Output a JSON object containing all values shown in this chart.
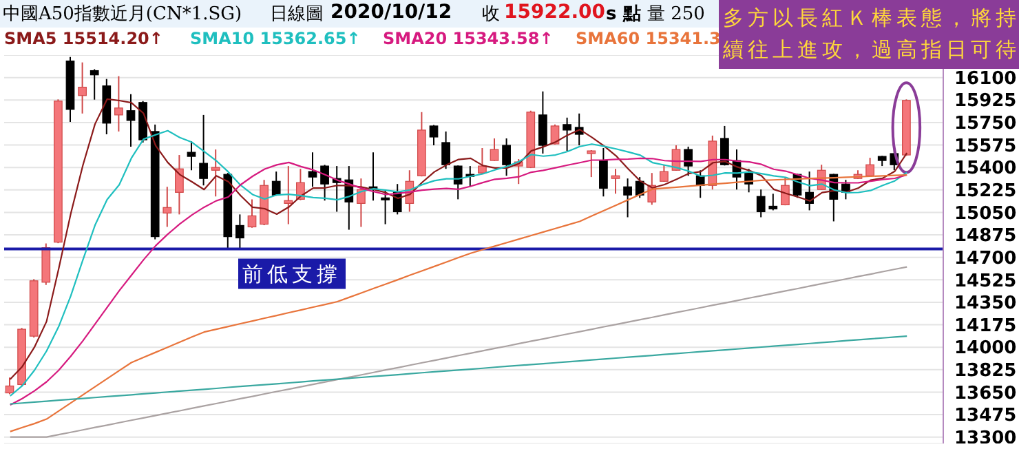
{
  "chart_data": {
    "type": "candlestick",
    "title": "中國A50指數近月(CN*1.SG)",
    "annotations": [
      "日線圖",
      "2020/10/12",
      "收",
      "15922.00",
      "s 點",
      "量 250",
      "多方以長紅Ｋ棒表態，將持續往上進攻，過高指日可待"
    ],
    "categories": [
      null,
      null,
      null,
      null,
      null,
      null,
      null,
      null,
      null,
      null,
      null,
      null,
      null,
      null,
      null,
      null,
      null,
      null,
      null,
      null,
      null,
      null,
      null,
      null,
      null,
      null,
      null,
      null,
      null,
      null,
      null,
      null,
      null,
      null,
      null,
      null,
      null,
      null,
      null,
      null,
      null,
      null,
      null,
      null,
      null,
      null,
      null,
      null,
      null,
      null,
      null,
      null,
      null,
      null,
      null,
      null,
      null,
      null,
      null,
      null,
      null,
      null,
      null,
      null,
      null,
      null,
      null,
      null,
      null,
      null,
      null,
      null,
      null,
      null,
      null
    ],
    "ohlc": [
      [
        13644,
        13763,
        13634,
        13698
      ],
      [
        13709,
        14150,
        13700,
        14140
      ],
      [
        14086,
        14530,
        14075,
        14517
      ],
      [
        14506,
        14808,
        14485,
        14775
      ],
      [
        14818,
        15930,
        14810,
        15917
      ],
      [
        16229,
        16260,
        15755,
        15852
      ],
      [
        15960,
        16218,
        15820,
        16025
      ],
      [
        16154,
        16165,
        15928,
        16121
      ],
      [
        16035,
        16089,
        15658,
        15745
      ],
      [
        15809,
        16111,
        15680,
        15863
      ],
      [
        15842,
        15971,
        15562,
        15766
      ],
      [
        15906,
        15917,
        15594,
        15615
      ],
      [
        15680,
        15734,
        14840,
        14861
      ],
      [
        15045,
        15249,
        14937,
        15088
      ],
      [
        15206,
        15497,
        15034,
        15389
      ],
      [
        15518,
        15605,
        15378,
        15486
      ],
      [
        15432,
        15809,
        15260,
        15314
      ],
      [
        15378,
        15540,
        15174,
        15400
      ],
      [
        15346,
        15357,
        14765,
        14861
      ],
      [
        14948,
        15034,
        14765,
        14851
      ],
      [
        14937,
        15152,
        14930,
        15023
      ],
      [
        14958,
        15303,
        14950,
        15260
      ],
      [
        15292,
        15368,
        15180,
        15185
      ],
      [
        15120,
        15411,
        14958,
        15142
      ],
      [
        15152,
        15389,
        15145,
        15282
      ],
      [
        15368,
        15518,
        15249,
        15325
      ],
      [
        15411,
        15420,
        15142,
        15271
      ],
      [
        15314,
        15411,
        15055,
        15282
      ],
      [
        15303,
        15411,
        14915,
        15131
      ],
      [
        15120,
        15314,
        14937,
        15228
      ],
      [
        15249,
        15518,
        15142,
        15228
      ],
      [
        15163,
        15228,
        14958,
        15152
      ],
      [
        15206,
        15271,
        15034,
        15055
      ],
      [
        15120,
        15378,
        15055,
        15292
      ],
      [
        15335,
        15831,
        15330,
        15691
      ],
      [
        15723,
        15730,
        15572,
        15637
      ],
      [
        15594,
        15680,
        15389,
        15421
      ],
      [
        15411,
        15415,
        15152,
        15271
      ],
      [
        15346,
        15411,
        15249,
        15335
      ],
      [
        15357,
        15551,
        15350,
        15411
      ],
      [
        15454,
        15626,
        15450,
        15540
      ],
      [
        15572,
        15626,
        15335,
        15421
      ],
      [
        15411,
        15465,
        15271,
        15443
      ],
      [
        15400,
        15842,
        15395,
        15831
      ],
      [
        15809,
        15992,
        15508,
        15572
      ],
      [
        15583,
        15734,
        15578,
        15723
      ],
      [
        15734,
        15788,
        15529,
        15691
      ],
      [
        15712,
        15820,
        15572,
        15658
      ],
      [
        15508,
        15535,
        15325,
        15529
      ],
      [
        15454,
        15551,
        15174,
        15238
      ],
      [
        15314,
        15389,
        15195,
        15335
      ],
      [
        15249,
        15314,
        15012,
        15185
      ],
      [
        15292,
        15325,
        15163,
        15185
      ],
      [
        15131,
        15357,
        15109,
        15260
      ],
      [
        15292,
        15421,
        15288,
        15368
      ],
      [
        15378,
        15572,
        15375,
        15540
      ],
      [
        15540,
        15562,
        15335,
        15411
      ],
      [
        15335,
        15378,
        15163,
        15260
      ],
      [
        15260,
        15648,
        15228,
        15605
      ],
      [
        15626,
        15723,
        15415,
        15421
      ],
      [
        15454,
        15540,
        15228,
        15325
      ],
      [
        15357,
        15389,
        15206,
        15271
      ],
      [
        15174,
        15228,
        15012,
        15055
      ],
      [
        15098,
        15195,
        15066,
        15077
      ],
      [
        15109,
        15325,
        15105,
        15260
      ],
      [
        15346,
        15350,
        15163,
        15185
      ],
      [
        15206,
        15368,
        15066,
        15120
      ],
      [
        15228,
        15421,
        15225,
        15378
      ],
      [
        15346,
        15350,
        14980,
        15152
      ],
      [
        15271,
        15303,
        15152,
        15206
      ],
      [
        15314,
        15378,
        15310,
        15346
      ],
      [
        15335,
        15475,
        15330,
        15421
      ],
      [
        15486,
        15490,
        15411,
        15454
      ],
      [
        15508,
        15540,
        15378,
        15421
      ],
      [
        15497,
        15930,
        15490,
        15922
      ]
    ],
    "series": [
      {
        "type": "line",
        "name": "SMA5 15514.20↑",
        "color": "#8b1a1a",
        "values": [
          13750,
          13850,
          14000,
          14200,
          14609,
          15040,
          15417,
          15738,
          15932,
          15921,
          15904,
          15822,
          15570,
          15439,
          15344,
          15288,
          15228,
          15335,
          15290,
          15182,
          15090,
          15079,
          15036,
          15092,
          15178,
          15239,
          15241,
          15260,
          15258,
          15247,
          15228,
          15204,
          15159,
          15191,
          15284,
          15365,
          15419,
          15462,
          15471,
          15415,
          15396,
          15396,
          15430,
          15529,
          15561,
          15598,
          15652,
          15695,
          15635,
          15568,
          15490,
          15389,
          15294,
          15241,
          15267,
          15308,
          15353,
          15368,
          15437,
          15447,
          15404,
          15376,
          15335,
          15230,
          15198,
          15170,
          15139,
          15204,
          15219,
          15208,
          15240,
          15301,
          15316,
          15370,
          15513
        ]
      },
      {
        "type": "line",
        "name": "SMA10 15362.65↑",
        "color": "#1fbfbf",
        "values": [
          13620,
          13700,
          13820,
          13970,
          14160,
          14400,
          14680,
          14950,
          15150,
          15265,
          15472,
          15620,
          15654,
          15686,
          15633,
          15596,
          15525,
          15453,
          15365,
          15263,
          15189,
          15154,
          15186,
          15191,
          15180,
          15165,
          15160,
          15148,
          15175,
          15213,
          15234,
          15223,
          15210,
          15225,
          15266,
          15297,
          15312,
          15311,
          15331,
          15350,
          15381,
          15408,
          15446,
          15500,
          15488,
          15497,
          15524,
          15563,
          15582,
          15565,
          15544,
          15521,
          15495,
          15438,
          15418,
          15399,
          15371,
          15331,
          15339,
          15357,
          15356,
          15365,
          15352,
          15334,
          15323,
          15287,
          15258,
          15270,
          15225,
          15203,
          15205,
          15220,
          15260,
          15295,
          15361
        ]
      },
      {
        "type": "line",
        "name": "SMA20 15343.58↑",
        "color": "#d61a7f",
        "values": [
          13550,
          13600,
          13660,
          13730,
          13820,
          13930,
          14050,
          14180,
          14310,
          14440,
          14560,
          14680,
          14790,
          14880,
          14960,
          15030,
          15090,
          15140,
          15170,
          15264,
          15331,
          15387,
          15420,
          15439,
          15407,
          15381,
          15343,
          15301,
          15270,
          15238,
          15212,
          15189,
          15198,
          15208,
          15223,
          15231,
          15236,
          15230,
          15253,
          15282,
          15308,
          15316,
          15328,
          15363,
          15377,
          15397,
          15418,
          15437,
          15457,
          15458,
          15463,
          15465,
          15471,
          15469,
          15453,
          15448,
          15448,
          15447,
          15461,
          15461,
          15450,
          15443,
          15424,
          15386,
          15371,
          15343,
          15315,
          15301,
          15282,
          15280,
          15281,
          15293,
          15306,
          15315,
          15342
        ]
      },
      {
        "type": "line",
        "name": "SMA60 15341.3",
        "color": "#e8743b",
        "values": [
          13343,
          13375,
          13405,
          13440,
          13503,
          13566,
          13629,
          13692,
          13755,
          13818,
          13880,
          13920,
          13960,
          14000,
          14040,
          14080,
          14118,
          14140,
          14161,
          14183,
          14204,
          14226,
          14247,
          14269,
          14290,
          14312,
          14333,
          14355,
          14389,
          14423,
          14458,
          14492,
          14526,
          14561,
          14595,
          14629,
          14663,
          14698,
          14732,
          14760,
          14787,
          14815,
          14842,
          14870,
          14897,
          14925,
          14952,
          14980,
          15022,
          15064,
          15106,
          15148,
          15190,
          15231,
          15239,
          15246,
          15254,
          15262,
          15270,
          15277,
          15285,
          15292,
          15300,
          15303,
          15307,
          15310,
          15314,
          15317,
          15320,
          15324,
          15327,
          15331,
          15334,
          15338,
          15341
        ]
      },
      {
        "type": "line",
        "color": "#aaa2a2",
        "values": [
          13300,
          13300,
          13300,
          13300,
          13319,
          13337,
          13356,
          13375,
          13393,
          13412,
          13431,
          13449,
          13468,
          13487,
          13505,
          13524,
          13543,
          13561,
          13580,
          13599,
          13617,
          13636,
          13655,
          13673,
          13692,
          13711,
          13729,
          13748,
          13767,
          13785,
          13804,
          13823,
          13841,
          13860,
          13879,
          13897,
          13916,
          13935,
          13953,
          13972,
          13991,
          14009,
          14028,
          14047,
          14065,
          14084,
          14103,
          14121,
          14140,
          14159,
          14177,
          14196,
          14215,
          14233,
          14252,
          14271,
          14289,
          14308,
          14327,
          14345,
          14364,
          14383,
          14401,
          14420,
          14439,
          14457,
          14476,
          14495,
          14513,
          14532,
          14551,
          14569,
          14588,
          14607,
          14625
        ]
      },
      {
        "type": "line",
        "color": "#3aa8a0",
        "values": [
          13558,
          13565,
          13572,
          13579,
          13587,
          13594,
          13601,
          13608,
          13615,
          13622,
          13629,
          13637,
          13644,
          13651,
          13658,
          13665,
          13672,
          13679,
          13687,
          13694,
          13701,
          13708,
          13715,
          13722,
          13729,
          13737,
          13744,
          13751,
          13758,
          13765,
          13772,
          13779,
          13786,
          13794,
          13801,
          13808,
          13815,
          13822,
          13829,
          13836,
          13844,
          13851,
          13858,
          13865,
          13872,
          13879,
          13886,
          13893,
          13901,
          13908,
          13915,
          13922,
          13929,
          13936,
          13944,
          13951,
          13958,
          13965,
          13972,
          13979,
          13986,
          13994,
          14001,
          14008,
          14015,
          14022,
          14029,
          14036,
          14043,
          14051,
          14058,
          14065,
          14072,
          14079,
          14086
        ]
      }
    ],
    "ylim": [
      13250,
      16275
    ],
    "yticks": [
      13300,
      13475,
      13650,
      13825,
      14000,
      14175,
      14350,
      14525,
      14700,
      14875,
      15050,
      15225,
      15400,
      15575,
      15750,
      15925,
      16100
    ],
    "ref_lines": [
      {
        "axis": "y",
        "value": 14765,
        "label": "前低支撐",
        "color": "#1a1aa8"
      }
    ],
    "grid": "y",
    "legend": "top left",
    "tick_labels": "y",
    "marker": "none",
    "line_style": "solid"
  }
}
